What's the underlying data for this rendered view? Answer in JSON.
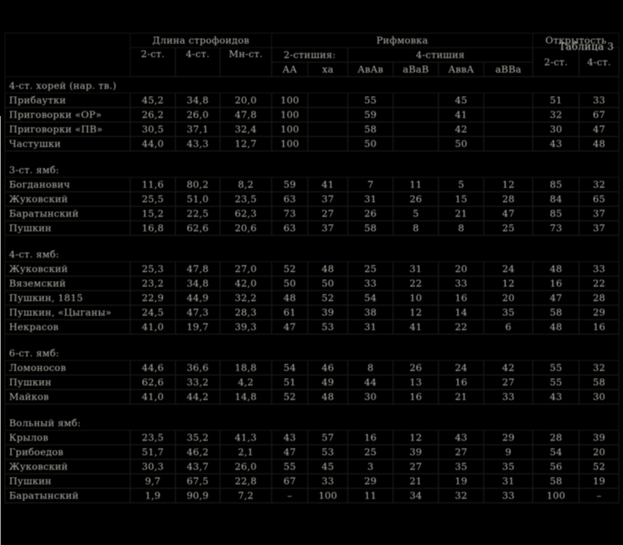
{
  "title": "Таблица 3",
  "table": {
    "head": {
      "length_label": "Длина строфоидов",
      "rhyme_label": "Рифмовка",
      "openness_label": "Открытость",
      "len_cols": [
        "2-ст.",
        "4-ст.",
        "Мн-ст."
      ],
      "two_label": "2-стишия:",
      "two_cols": [
        "АА",
        "ха"
      ],
      "four_label": "4-стишия",
      "four_cols": [
        "АвАв",
        "аВаВ",
        "АввА",
        "аВВа"
      ],
      "open_cols": [
        "2-ст.",
        "4-ст."
      ]
    },
    "groups": [
      {
        "header": "4-ст. хорей (нар. тв.)",
        "rows": [
          {
            "label": "Прибаутки",
            "values": [
              "45,2",
              "34,8",
              "20,0",
              "100",
              "",
              "55",
              "",
              "45",
              "",
              "51",
              "33"
            ]
          },
          {
            "label": "Приговорки «ОР»",
            "values": [
              "26,2",
              "26,0",
              "47,8",
              "100",
              "",
              "59",
              "",
              "41",
              "",
              "32",
              "67"
            ]
          },
          {
            "label": "Приговорки «ПВ»",
            "values": [
              "30,5",
              "37,1",
              "32,4",
              "100",
              "",
              "58",
              "",
              "42",
              "",
              "30",
              "47"
            ]
          },
          {
            "label": "Частушки",
            "values": [
              "44,0",
              "43,3",
              "12,7",
              "100",
              "",
              "50",
              "",
              "50",
              "",
              "43",
              "48"
            ]
          }
        ]
      },
      {
        "header": "3-ст. ямб:",
        "rows": [
          {
            "label": "Богданович",
            "values": [
              "11,6",
              "80,2",
              "8,2",
              "59",
              "41",
              "7",
              "11",
              "5",
              "12",
              "85",
              "32"
            ]
          },
          {
            "label": "Жуковский",
            "values": [
              "25,5",
              "51,0",
              "23,5",
              "63",
              "37",
              "31",
              "26",
              "15",
              "28",
              "84",
              "65"
            ]
          },
          {
            "label": "Баратынский",
            "values": [
              "15,2",
              "22,5",
              "62,3",
              "73",
              "27",
              "26",
              "5",
              "21",
              "47",
              "85",
              "37"
            ]
          },
          {
            "label": "Пушкин",
            "values": [
              "16,8",
              "62,6",
              "20,6",
              "63",
              "37",
              "58",
              "8",
              "8",
              "25",
              "73",
              "37"
            ]
          }
        ]
      },
      {
        "header": "4-ст. ямб:",
        "rows": [
          {
            "label": "Жуковский",
            "values": [
              "25,3",
              "47,8",
              "27,0",
              "52",
              "48",
              "25",
              "31",
              "20",
              "24",
              "48",
              "33"
            ]
          },
          {
            "label": "Вяземский",
            "values": [
              "23,2",
              "34,8",
              "42,0",
              "50",
              "50",
              "33",
              "22",
              "33",
              "12",
              "16",
              "22"
            ]
          },
          {
            "label": "Пушкин, 1815",
            "values": [
              "22,9",
              "44,9",
              "32,2",
              "48",
              "52",
              "54",
              "10",
              "16",
              "20",
              "47",
              "28"
            ]
          },
          {
            "label": "Пушкин, «Цыганы»",
            "values": [
              "24,5",
              "47,3",
              "28,3",
              "61",
              "39",
              "38",
              "12",
              "14",
              "35",
              "58",
              "29"
            ]
          },
          {
            "label": "Некрасов",
            "values": [
              "41,0",
              "19,7",
              "39,3",
              "47",
              "53",
              "31",
              "41",
              "22",
              "6",
              "48",
              "16"
            ]
          }
        ]
      },
      {
        "header": "6-ст. ямб:",
        "rows": [
          {
            "label": "Ломоносов",
            "values": [
              "44,6",
              "36,6",
              "18,8",
              "54",
              "46",
              "8",
              "26",
              "24",
              "42",
              "55",
              "32"
            ]
          },
          {
            "label": "Пушкин",
            "values": [
              "62,6",
              "33,2",
              "4,2",
              "51",
              "49",
              "44",
              "13",
              "16",
              "27",
              "55",
              "58"
            ]
          },
          {
            "label": "Майков",
            "values": [
              "41,0",
              "44,2",
              "14,8",
              "52",
              "48",
              "30",
              "16",
              "21",
              "33",
              "43",
              "30"
            ]
          }
        ]
      },
      {
        "header": "Вольный ямб:",
        "rows": [
          {
            "label": "Крылов",
            "values": [
              "23,5",
              "35,2",
              "41,3",
              "43",
              "57",
              "16",
              "12",
              "43",
              "29",
              "28",
              "39"
            ]
          },
          {
            "label": "Грибоедов",
            "values": [
              "51,7",
              "46,2",
              "2,1",
              "47",
              "53",
              "25",
              "39",
              "27",
              "9",
              "54",
              "20"
            ]
          },
          {
            "label": "Жуковский",
            "values": [
              "30,3",
              "43,7",
              "26,0",
              "55",
              "45",
              "3",
              "27",
              "35",
              "35",
              "56",
              "52"
            ]
          },
          {
            "label": "Пушкин",
            "values": [
              "9,7",
              "67,5",
              "22,8",
              "67",
              "33",
              "29",
              "21",
              "19",
              "31",
              "58",
              "19"
            ]
          },
          {
            "label": "Баратынский",
            "values": [
              "1,9",
              "90,9",
              "7,2",
              "–",
              "100",
              "11",
              "34",
              "32",
              "33",
              "100",
              "–"
            ]
          }
        ]
      }
    ]
  }
}
